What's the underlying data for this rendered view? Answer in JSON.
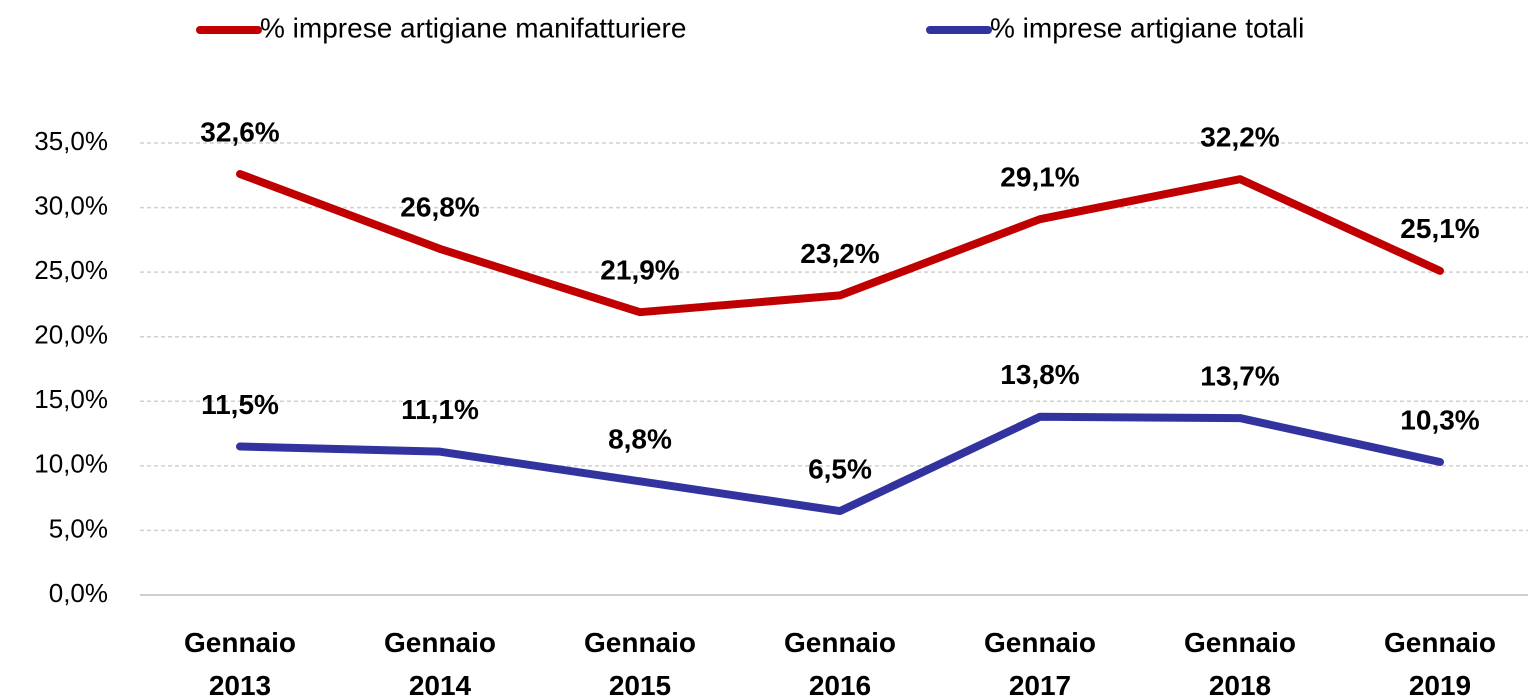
{
  "chart_data": {
    "type": "line",
    "categories": [
      "Gennaio 2013",
      "Gennaio 2014",
      "Gennaio 2015",
      "Gennaio 2016",
      "Gennaio 2017",
      "Gennaio 2018",
      "Gennaio 2019"
    ],
    "series": [
      {
        "name": "% imprese artigiane manifatturiere",
        "color": "#c00000",
        "values": [
          32.6,
          26.8,
          21.9,
          23.2,
          29.1,
          32.2,
          25.1
        ],
        "value_labels": [
          "32,6%",
          "26,8%",
          "21,9%",
          "23,2%",
          "29,1%",
          "32,2%",
          "25,1%"
        ]
      },
      {
        "name": "% imprese artigiane totali",
        "color": "#3333a0",
        "values": [
          11.5,
          11.1,
          8.8,
          6.5,
          13.8,
          13.7,
          10.3
        ],
        "value_labels": [
          "11,5%",
          "11,1%",
          "8,8%",
          "6,5%",
          "13,8%",
          "13,7%",
          "10,3%"
        ]
      }
    ],
    "ylim": [
      0,
      35
    ],
    "yticks": [
      {
        "value": 0,
        "label": "0,0%"
      },
      {
        "value": 5,
        "label": "5,0%"
      },
      {
        "value": 10,
        "label": "10,0%"
      },
      {
        "value": 15,
        "label": "15,0%"
      },
      {
        "value": 20,
        "label": "20,0%"
      },
      {
        "value": 25,
        "label": "25,0%"
      },
      {
        "value": 30,
        "label": "30,0%"
      },
      {
        "value": 35,
        "label": "35,0%"
      }
    ],
    "grid": true,
    "legend": "top"
  }
}
